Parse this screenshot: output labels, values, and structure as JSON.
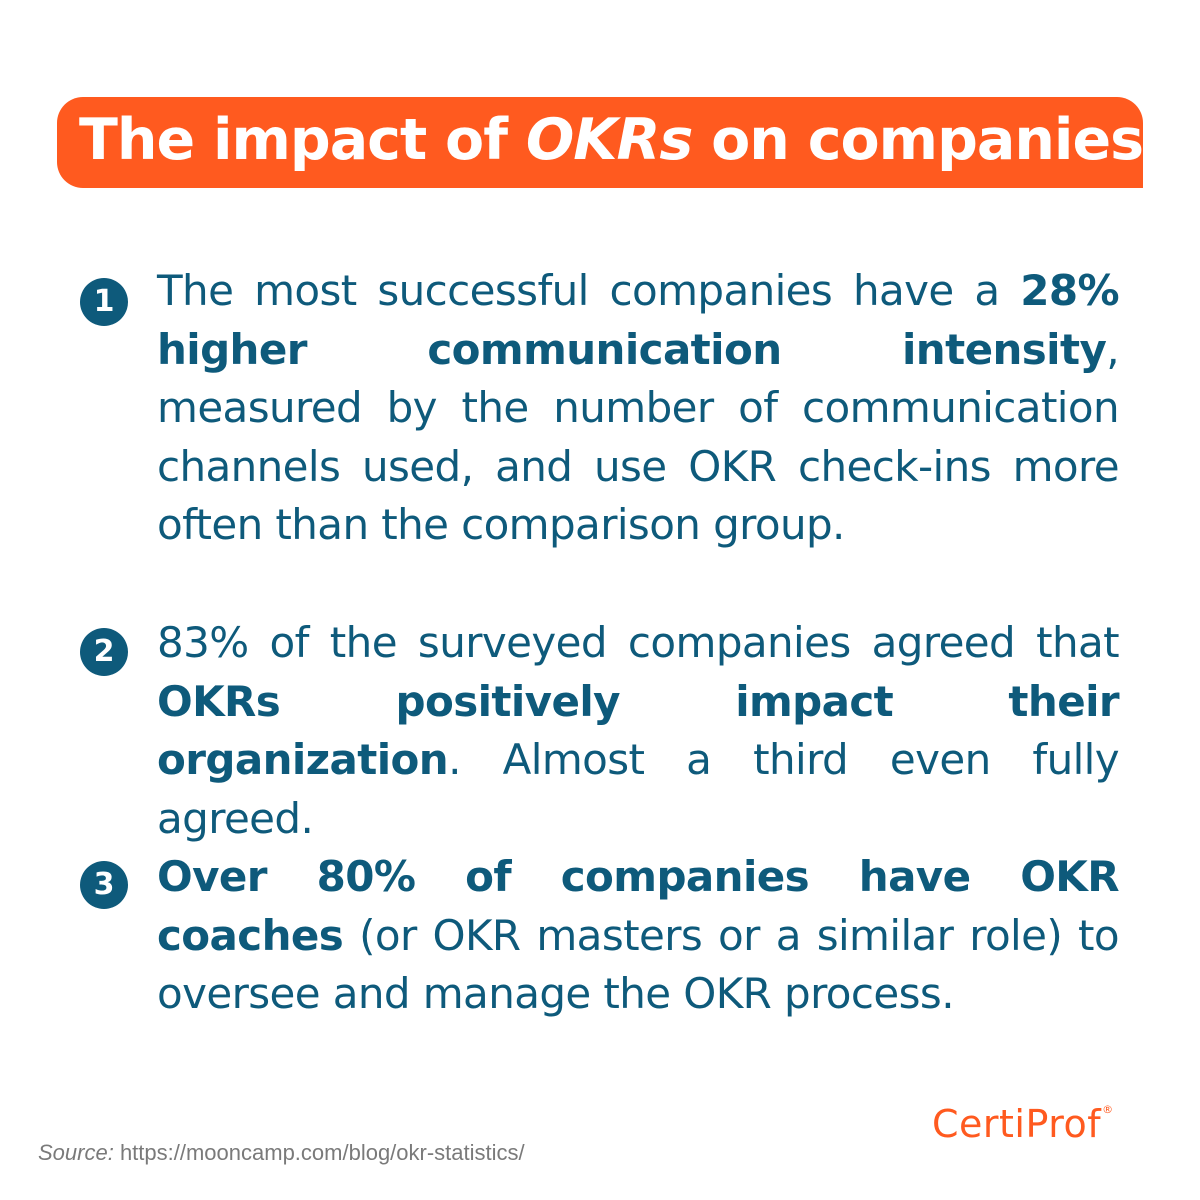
{
  "title": {
    "part1": "The impact of ",
    "part2": "OKRs",
    "part3": " on companies"
  },
  "items": [
    {
      "number": "1",
      "segments": [
        {
          "text": "The most successful companies have a ",
          "bold": false
        },
        {
          "text": "28% higher communication intensity",
          "bold": true
        },
        {
          "text": ", measured by the number of communication channels used, and use OKR check-ins more often than the comparison group.",
          "bold": false
        }
      ]
    },
    {
      "number": "2",
      "segments": [
        {
          "text": "83% of the surveyed companies agreed that ",
          "bold": false
        },
        {
          "text": "OKRs positively impact their organization",
          "bold": true
        },
        {
          "text": ". Almost a third even fully agreed.",
          "bold": false
        }
      ]
    },
    {
      "number": "3",
      "segments": [
        {
          "text": "Over 80% of companies have OKR coaches",
          "bold": true
        },
        {
          "text": " (or OKR masters or a similar role) to oversee and manage the OKR process.",
          "bold": false
        }
      ]
    }
  ],
  "source": {
    "label": "Source:",
    "url": " https://mooncamp.com/blog/okr-statistics/"
  },
  "logo": {
    "text": "CertiProf",
    "registered": "®"
  },
  "colors": {
    "accent": "#ff5a1f",
    "text": "#0e5a7b",
    "muted": "#7a7a7a"
  }
}
